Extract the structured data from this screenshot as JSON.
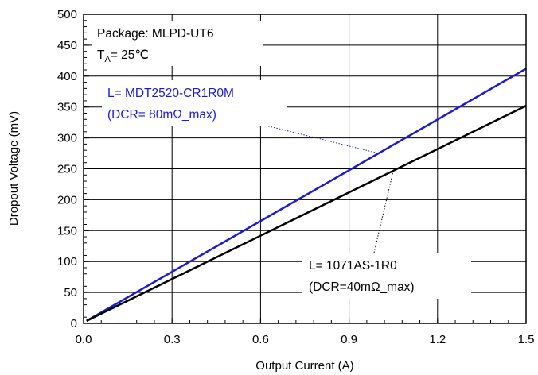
{
  "chart_data": {
    "type": "line",
    "xlabel": "Output Current (A)",
    "ylabel": "Dropout Voltage (mV)",
    "xlim": [
      0,
      1.5
    ],
    "ylim": [
      0,
      500
    ],
    "xticks": [
      "0.0",
      "0.3",
      "0.6",
      "0.9",
      "1.2",
      "1.5"
    ],
    "yticks": [
      "0",
      "50",
      "100",
      "150",
      "200",
      "250",
      "300",
      "350",
      "400",
      "450",
      "500"
    ],
    "grid": true,
    "series": [
      {
        "label_line1": "L= MDT2520-CR1R0M",
        "label_line2": "(DCR= 80mΩ_max)",
        "color": "#1a1ad6",
        "x": [
          0.01,
          1.5
        ],
        "y": [
          4,
          412
        ]
      },
      {
        "label_line1": "L= 1071AS-1R0",
        "label_line2": "(DCR=40mΩ_max)",
        "color": "#000000",
        "x": [
          0.01,
          1.5
        ],
        "y": [
          4,
          352
        ]
      }
    ],
    "conditions": {
      "package": "Package: MLPD-UT6",
      "temp_prefix": "T",
      "temp_sub": "A",
      "temp_suffix": "= 25℃"
    }
  }
}
